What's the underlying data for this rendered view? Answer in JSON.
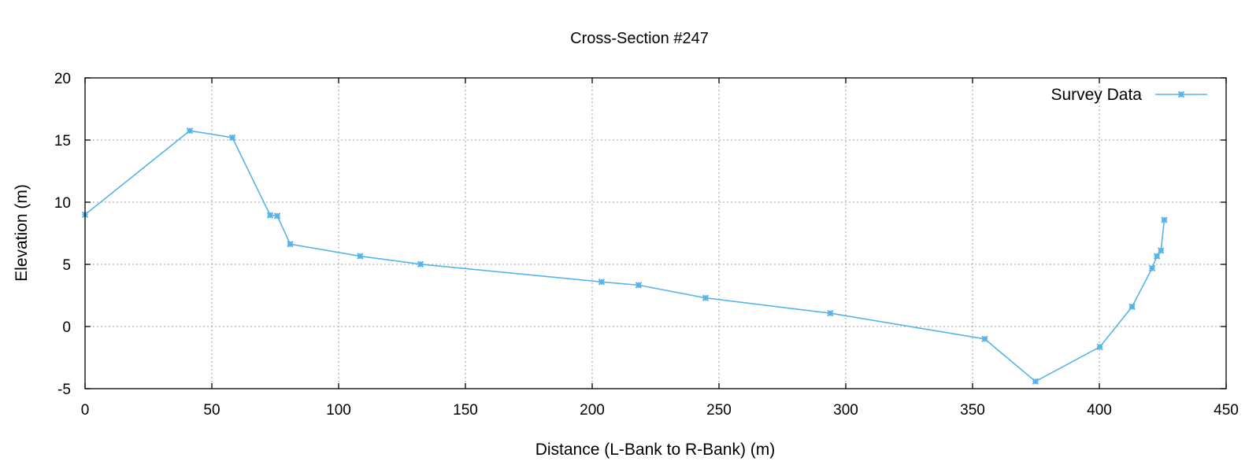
{
  "chart_data": {
    "type": "line",
    "title": "Cross-Section #247",
    "xlabel": "Distance (L-Bank to R-Bank) (m)",
    "ylabel": "Elevation (m)",
    "xlim": [
      0,
      450
    ],
    "ylim": [
      -5,
      20
    ],
    "xticks": [
      0,
      50,
      100,
      150,
      200,
      250,
      300,
      350,
      400,
      450
    ],
    "yticks": [
      -5,
      0,
      5,
      10,
      15,
      20
    ],
    "grid": true,
    "legend_position": "top-right",
    "series": [
      {
        "name": "Survey Data",
        "color": "#56b4e9",
        "marker": "asterisk",
        "x": [
          0,
          41.3,
          58.1,
          73.0,
          75.8,
          80.9,
          108.5,
          132.3,
          203.7,
          218.3,
          244.7,
          293.9,
          354.8,
          374.8,
          400.2,
          412.9,
          420.8,
          422.7,
          424.3,
          425.6
        ],
        "y": [
          9.0,
          15.75,
          15.2,
          8.95,
          8.9,
          6.63,
          5.66,
          5.01,
          3.59,
          3.33,
          2.3,
          1.07,
          -1.0,
          -4.42,
          -1.64,
          1.59,
          4.69,
          5.66,
          6.11,
          8.57
        ]
      }
    ]
  }
}
